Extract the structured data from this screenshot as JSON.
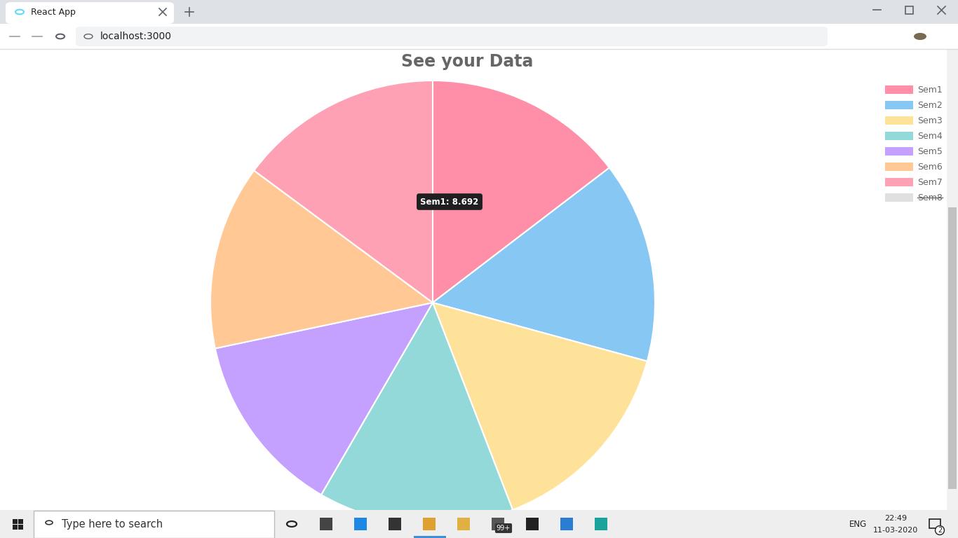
{
  "window": {
    "tab_title": "React App",
    "url": "localhost:3000"
  },
  "taskbar": {
    "search": "Type here to search",
    "language": "ENG",
    "time": "22:49",
    "date": "11-03-2020",
    "badges": [
      "99+",
      "2"
    ]
  },
  "chart_data": {
    "type": "pie",
    "title": "See your Data",
    "categories": [
      "Sem1",
      "Sem2",
      "Sem3",
      "Sem4",
      "Sem5",
      "Sem6",
      "Sem7",
      "Sem8"
    ],
    "values": [
      8.692,
      8.71,
      8.86,
      8.46,
      7.93,
      8.0,
      8.84,
      null
    ],
    "colors": [
      "#ff8fa8",
      "#86c7f3",
      "#ffe29a",
      "#93d9d9",
      "#c4a1ff",
      "#ffc894",
      "#ffa1b5",
      "#e0e0e0"
    ],
    "legend": "upper right",
    "annotations": [
      "Sem1: 8.692"
    ]
  }
}
